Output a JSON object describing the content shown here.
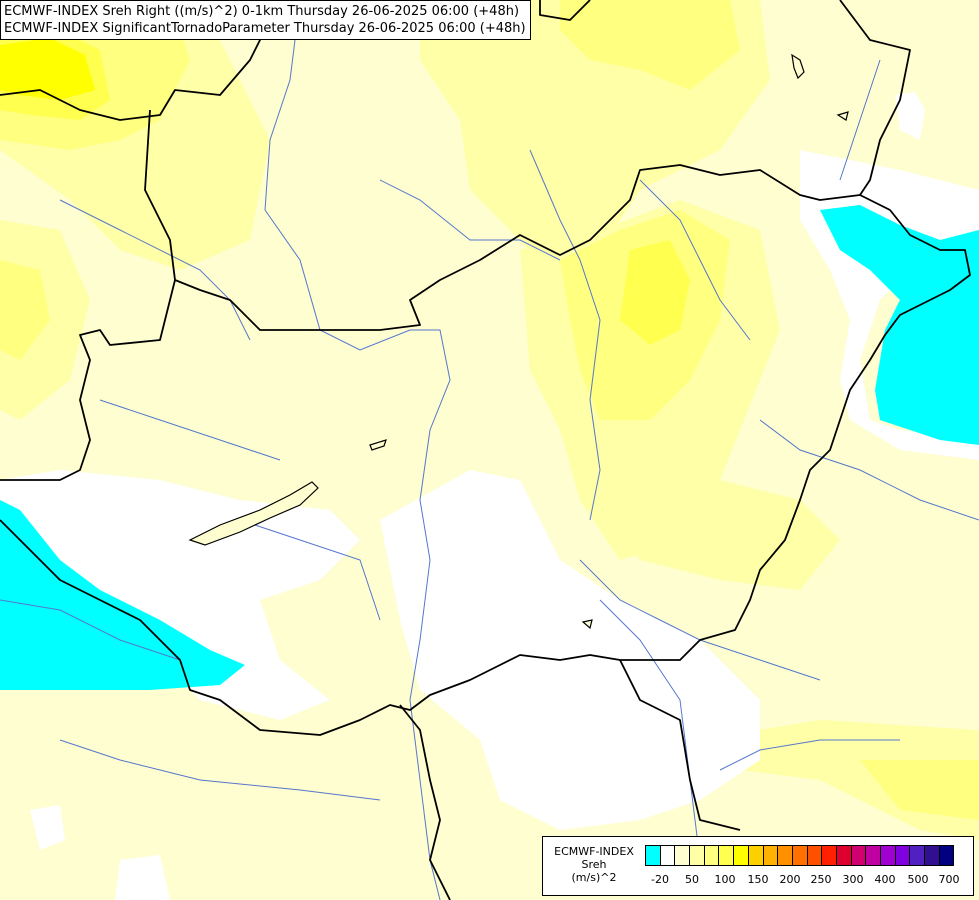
{
  "header": {
    "line1": "ECMWF-INDEX Sreh Right ((m/s)^2) 0-1km Thursday 26-06-2025 06:00 (+48h)",
    "line2": "ECMWF-INDEX SignificantTornadoParameter Thursday 26-06-2025 06:00 (+48h)"
  },
  "legend": {
    "line1": "ECMWF-INDEX",
    "line2": "Sreh",
    "line3": "(m/s)^2",
    "colors": [
      "#00ffff",
      "#ffffff",
      "#ffffd0",
      "#ffffa8",
      "#ffff80",
      "#ffff50",
      "#ffff00",
      "#ffd000",
      "#ffb000",
      "#ff9000",
      "#ff7000",
      "#ff5000",
      "#ff2000",
      "#e00030",
      "#d00070",
      "#c000a0",
      "#a000d0",
      "#8000e0",
      "#5020c0",
      "#301090",
      "#000080"
    ],
    "ticks": [
      {
        "label": "-20",
        "index": 1
      },
      {
        "label": "50",
        "index": 2
      },
      {
        "label": "100",
        "index": 3
      },
      {
        "label": "150",
        "index": 4
      },
      {
        "label": "200",
        "index": 5
      },
      {
        "label": "250",
        "index": 6
      },
      {
        "label": "300",
        "index": 7
      },
      {
        "label": "400",
        "index": 8
      },
      {
        "label": "500",
        "index": 9
      },
      {
        "label": "700",
        "index": 10
      }
    ]
  },
  "map_colors": {
    "base": "#fefed0",
    "light_yellow": "#ffffa8",
    "yellow": "#ffff80",
    "bright_yellow": "#ffff50",
    "strong_yellow": "#ffff00",
    "negative": "#00ffff",
    "neutral": "#ffffff",
    "border": "#000000",
    "river": "#5577cc"
  }
}
